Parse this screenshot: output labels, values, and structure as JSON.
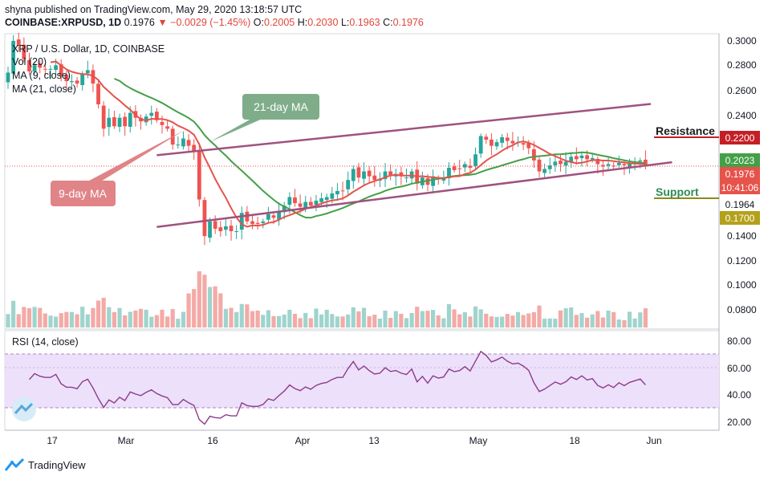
{
  "publisher_line": "shyna published on TradingView.com, May 29, 2020 13:18:57 UTC",
  "symbol_line": {
    "symbol": "COINBASE:XRPUSD, 1D",
    "price": "0.1976",
    "arrow": "▼",
    "change": "−0.0029 (−1.45%)",
    "o_label": "O:",
    "o": "0.2005",
    "h_label": "H:",
    "h": "0.2030",
    "l_label": "L:",
    "l": "0.1963",
    "c_label": "C:",
    "c": "0.1976"
  },
  "legend": {
    "title": "XRP / U.S. Dollar, 1D, COINBASE",
    "vol": "Vol (20)",
    "ma9": "MA (9, close)",
    "ma21": "MA (21, close)",
    "rsi": "RSI (14, close)"
  },
  "annotations": {
    "ma21_label": "21-day MA",
    "ma9_label": "9-day MA",
    "resistance": "Resistance",
    "support": "Support"
  },
  "price_axis": {
    "ticks": [
      "0.3000",
      "0.2800",
      "0.2600",
      "0.2400",
      "0.2200",
      "0.1400",
      "0.1200",
      "0.1000",
      "0.0800"
    ],
    "badges": {
      "resistance": "0.2200",
      "ma21": "0.2023",
      "price": "0.1976",
      "time": "10:41:06",
      "ma9": "0.1964",
      "support": "0.1700"
    }
  },
  "rsi_axis": {
    "ticks": [
      "80.00",
      "60.00",
      "40.00",
      "20.00"
    ]
  },
  "time_axis": {
    "ticks": [
      "17",
      "Mar",
      "16",
      "Apr",
      "13",
      "May",
      "18",
      "Jun"
    ]
  },
  "colors": {
    "up": "#26a69a",
    "down": "#ef5350",
    "ma9": "#e5534b",
    "ma21": "#43a047",
    "channel": "#a0527f",
    "resistance": "#c41f27",
    "support": "#8a8c14",
    "rsi_line": "#8e3b8a",
    "rsi_band": "#ece0fa",
    "ma21_box": "#7fad8a",
    "ma9_box": "#e08487"
  },
  "footer": {
    "brand": "TradingView"
  },
  "chart_data": {
    "type": "candlestick",
    "title": "XRP / U.S. Dollar, 1D, COINBASE",
    "x_ticks": [
      "17",
      "Mar",
      "16",
      "Apr",
      "13",
      "May",
      "18",
      "Jun"
    ],
    "y_ticks": [
      0.3,
      0.28,
      0.26,
      0.24,
      0.22,
      0.14,
      0.12,
      0.1,
      0.08
    ],
    "ylim": [
      0.068,
      0.304
    ],
    "series": [
      {
        "name": "XRPUSD daily close",
        "close": [
          0.273,
          0.299,
          0.295,
          0.284,
          0.274,
          0.279,
          0.277,
          0.276,
          0.276,
          0.279,
          0.27,
          0.266,
          0.266,
          0.264,
          0.272,
          0.275,
          0.264,
          0.247,
          0.227,
          0.236,
          0.229,
          0.236,
          0.229,
          0.24,
          0.236,
          0.233,
          0.237,
          0.24,
          0.234,
          0.23,
          0.227,
          0.214,
          0.214,
          0.219,
          0.213,
          0.208,
          0.169,
          0.139,
          0.151,
          0.145,
          0.143,
          0.147,
          0.143,
          0.143,
          0.158,
          0.151,
          0.149,
          0.149,
          0.151,
          0.157,
          0.154,
          0.159,
          0.164,
          0.171,
          0.166,
          0.163,
          0.167,
          0.164,
          0.168,
          0.17,
          0.171,
          0.174,
          0.176,
          0.176,
          0.185,
          0.194,
          0.187,
          0.192,
          0.188,
          0.185,
          0.186,
          0.192,
          0.189,
          0.19,
          0.188,
          0.187,
          0.192,
          0.182,
          0.187,
          0.181,
          0.188,
          0.186,
          0.187,
          0.195,
          0.193,
          0.194,
          0.198,
          0.195,
          0.206,
          0.221,
          0.218,
          0.213,
          0.216,
          0.22,
          0.217,
          0.215,
          0.216,
          0.214,
          0.211,
          0.201,
          0.192,
          0.194,
          0.197,
          0.2,
          0.198,
          0.2,
          0.204,
          0.202,
          0.205,
          0.202,
          0.203,
          0.198,
          0.196,
          0.198,
          0.196,
          0.199,
          0.197,
          0.199,
          0.2,
          0.201,
          0.1976
        ]
      },
      {
        "name": "MA (9, close)",
        "end_value": 0.1964
      },
      {
        "name": "MA (21, close)",
        "end_value": 0.2023
      }
    ],
    "levels": {
      "resistance": 0.22,
      "support": 0.17
    },
    "channel": {
      "upper": [
        [
          28,
          0.2053
        ],
        [
          121,
          0.2473
        ]
      ],
      "lower": [
        [
          28,
          0.1465
        ],
        [
          125,
          0.1995
        ]
      ]
    },
    "rsi": {
      "ylim": [
        16,
        86
      ],
      "band": [
        30,
        70
      ],
      "ticks": [
        80,
        60,
        40,
        20
      ]
    }
  }
}
